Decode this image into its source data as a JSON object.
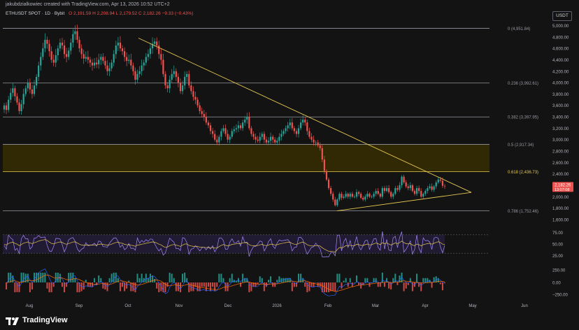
{
  "header": {
    "user_caption": "jakubdzialkowiec created with TradingView.com, Apr 13, 2026 10:52 UTC+2",
    "symbol": "ETHUSDT SPOT · 1D · Bybit",
    "ohlc": "O 2,191.59  H 2,208.94  L 2,179.52  C 2,182.26  −9.33 (−0.43%)",
    "currency": "USDT"
  },
  "chart_data": {
    "type": "candlestick",
    "x_labels": [
      "Aug",
      "Sep",
      "Oct",
      "Nov",
      "Dec",
      "2026",
      "Feb",
      "Mar",
      "Apr",
      "May",
      "Jun"
    ],
    "y_ticks": [
      "5,000.00",
      "4,800.00",
      "4,600.00",
      "4,400.00",
      "4,200.00",
      "4,000.00",
      "3,800.00",
      "3,600.00",
      "3,400.00",
      "3,200.00",
      "3,000.00",
      "2,800.00",
      "2,600.00",
      "2,400.00",
      "2,200.00",
      "2,000.00",
      "1,800.00",
      "1,600.00"
    ],
    "y_tick_values": [
      5000,
      4800,
      4600,
      4400,
      4200,
      4000,
      3800,
      3600,
      3400,
      3200,
      3000,
      2800,
      2600,
      2400,
      2200,
      2000,
      1800,
      1600
    ],
    "ylim": [
      1550,
      5080
    ],
    "fib_levels": [
      {
        "label": "0 (4,951.84)",
        "value": 4951.84
      },
      {
        "label": "0.236 (3,992.61)",
        "value": 3992.61
      },
      {
        "label": "0.382 (3,397.95)",
        "value": 3397.95
      },
      {
        "label": "0.5 (2,917.34)",
        "value": 2917.34
      },
      {
        "label": "0.618 (2,436.73)",
        "value": 2436.73
      },
      {
        "label": "0.786 (1,752.46)",
        "value": 1752.46
      }
    ],
    "price_label": "2,182.26",
    "countdown": "13:07:08",
    "price_value": 2182.26,
    "closes": [
      3600,
      3520,
      3700,
      3820,
      3900,
      3760,
      3650,
      3500,
      3620,
      3800,
      3900,
      4000,
      3880,
      3800,
      3950,
      4100,
      4300,
      4450,
      4600,
      4750,
      4680,
      4550,
      4400,
      4350,
      4480,
      4600,
      4700,
      4650,
      4500,
      4450,
      4560,
      4700,
      4850,
      4900,
      4750,
      4600,
      4500,
      4420,
      4450,
      4400,
      4350,
      4300,
      4350,
      4320,
      4400,
      4450,
      4380,
      4300,
      4200,
      4250,
      4350,
      4500,
      4650,
      4700,
      4600,
      4550,
      4450,
      4380,
      4400,
      4300,
      4200,
      4050,
      4150,
      4200,
      4300,
      4350,
      4450,
      4500,
      4600,
      4680,
      4720,
      4650,
      4500,
      4400,
      4150,
      3950,
      3900,
      4050,
      4150,
      4200,
      4100,
      4000,
      3850,
      3950,
      4100,
      4150,
      3950,
      3850,
      3750,
      3700,
      3600,
      3500,
      3450,
      3400,
      3300,
      3250,
      3150,
      3100,
      3000,
      2950,
      3050,
      3150,
      3200,
      3100,
      3000,
      3050,
      3150,
      3180,
      3200,
      3250,
      3200,
      3300,
      3350,
      3400,
      3200,
      3100,
      3050,
      3000,
      2980,
      3050,
      3100,
      3000,
      2950,
      2980,
      3050,
      3000,
      2950,
      2980,
      3050,
      3100,
      3150,
      3200,
      3250,
      3300,
      3200,
      3150,
      3100,
      3200,
      3300,
      3350,
      3300,
      3150,
      3050,
      3000,
      2950,
      2950,
      2900,
      2850,
      2650,
      2450,
      2300,
      2150,
      2050,
      1950,
      1850,
      1950,
      2050,
      1980,
      2000,
      2050,
      2000,
      2050,
      2000,
      2000,
      2080,
      2050,
      1980,
      1950,
      2000,
      2050,
      2000,
      2000,
      2050,
      2100,
      2050,
      2000,
      2150,
      2100,
      2150,
      2080,
      2000,
      2050,
      2150,
      2120,
      2200,
      2350,
      2250,
      2180,
      2150,
      2200,
      2100,
      2050,
      2150,
      2100,
      2000,
      2050,
      2100,
      2150,
      2180,
      2120,
      2180,
      2250,
      2300,
      2280,
      2191,
      2182
    ],
    "rsi_ticks": [
      "75.00",
      "50.00",
      "25.00"
    ],
    "macd_ticks": [
      "250.00",
      "0.00",
      "−250.00"
    ]
  },
  "colors": {
    "background": "#131313",
    "up": "#26a69a",
    "down": "#ef5350",
    "trendline": "#e6c84f",
    "fib_line": "#9598a1",
    "fib_zone": "#3a3000",
    "rsi_line": "#a78bfa",
    "rsi_ma": "#e6c84f"
  },
  "footer": {
    "brand": "TradingView"
  }
}
